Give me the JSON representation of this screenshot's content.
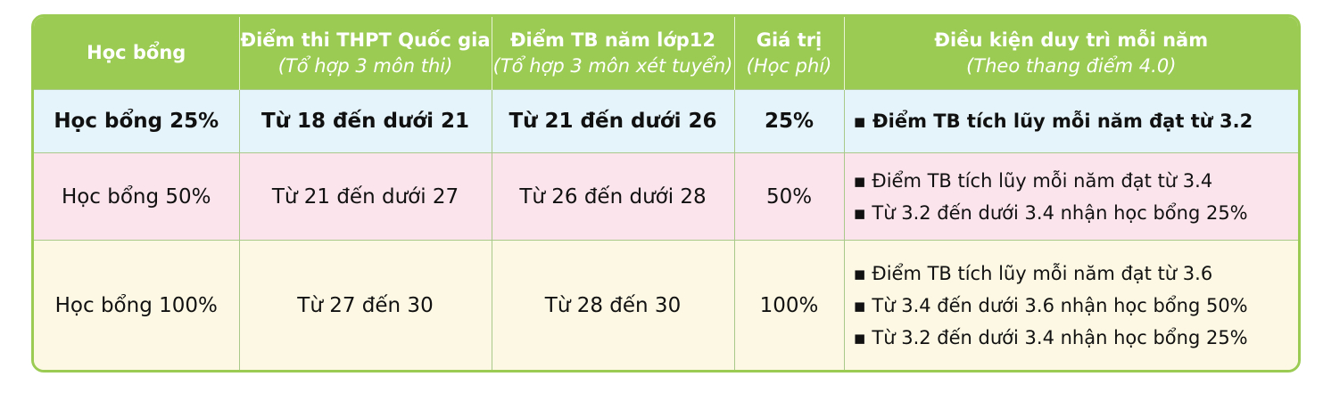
{
  "table": {
    "header": [
      {
        "title": "Học bổng"
      },
      {
        "title": "Điểm thi THPT Quốc gia",
        "subtitle": "(Tổ hợp 3 môn thi)"
      },
      {
        "title": "Điểm TB năm lớp12",
        "subtitle": "(Tổ hợp 3 môn xét tuyển)"
      },
      {
        "title": "Giá trị",
        "subtitle": "(Học phí)"
      },
      {
        "title": "Điều kiện duy trì mỗi năm",
        "subtitle": "(Theo thang điểm 4.0)"
      }
    ],
    "rows": [
      {
        "cells": [
          "Học bổng 25%",
          "Từ 18 đến dưới 21",
          "Từ 21 đến dưới 26",
          "25%"
        ],
        "conditions": [
          "Điểm TB tích lũy mỗi năm đạt từ 3.2"
        ]
      },
      {
        "cells": [
          "Học bổng 50%",
          "Từ 21 đến dưới 27",
          "Từ 26 đến dưới 28",
          "50%"
        ],
        "conditions": [
          "Điểm TB tích lũy mỗi năm đạt từ 3.4",
          "Từ 3.2 đến dưới 3.4 nhận học bổng 25%"
        ]
      },
      {
        "cells": [
          "Học bổng 100%",
          "Từ 27 đến 30",
          "Từ 28 đến 30",
          "100%"
        ],
        "conditions": [
          "Điểm TB tích lũy mỗi năm đạt từ 3.6",
          "Từ 3.4 đến dưới 3.6 nhận học bổng 50%",
          "Từ 3.2 đến dưới 3.4 nhận học bổng 25%"
        ]
      }
    ]
  }
}
